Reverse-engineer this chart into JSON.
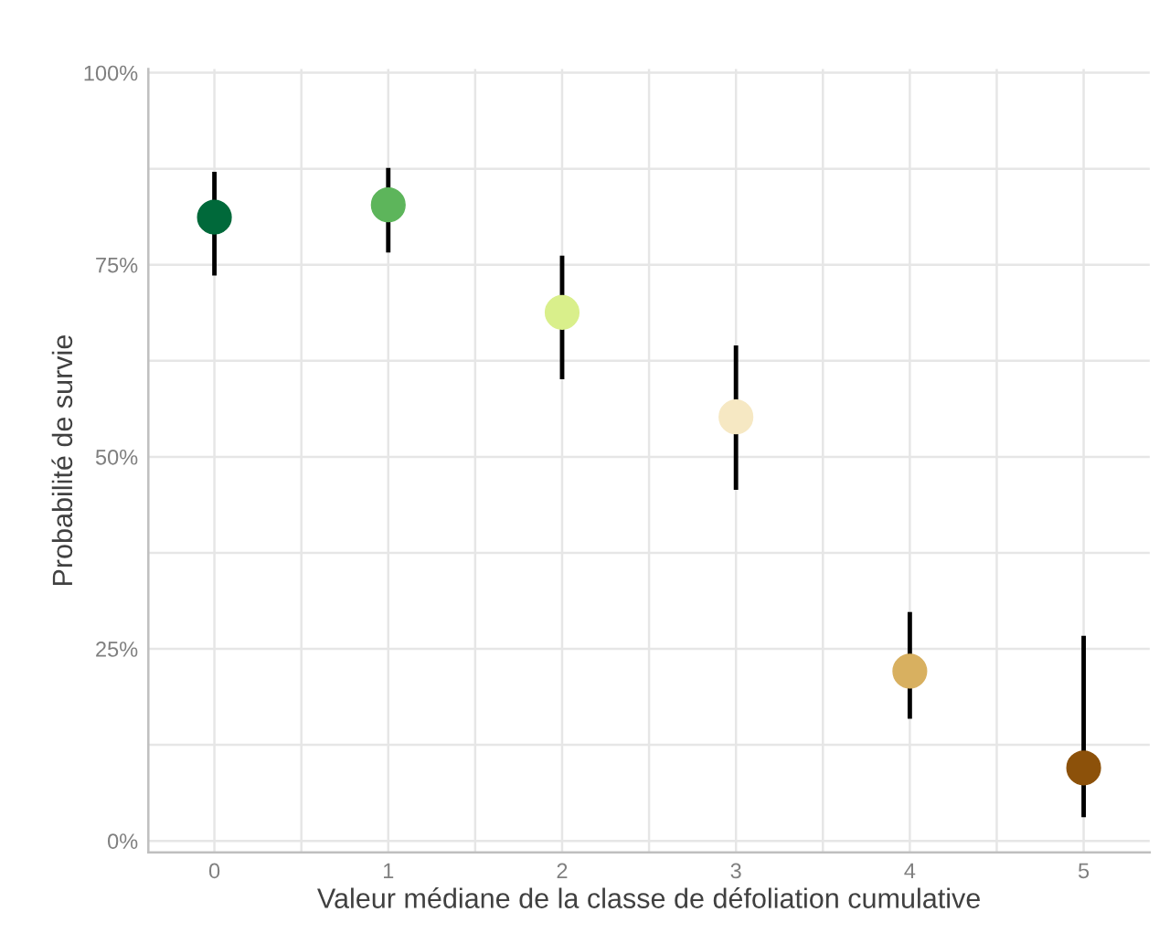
{
  "chart_data": {
    "type": "scatter",
    "xlabel": "Valeur médiane de la classe de défoliation cumulative",
    "ylabel": "Probabilité de survie",
    "x": [
      0,
      1,
      2,
      3,
      4,
      5
    ],
    "values": [
      81.2,
      82.8,
      68.8,
      55.2,
      22.1,
      9.5
    ],
    "errors": [
      [
        73.6,
        87.1
      ],
      [
        76.6,
        87.6
      ],
      [
        60.1,
        76.2
      ],
      [
        45.7,
        64.5
      ],
      [
        15.9,
        29.8
      ],
      [
        3.1,
        26.7
      ]
    ],
    "colors": [
      "#00693a",
      "#5db55b",
      "#d9ef8b",
      "#f6e8c3",
      "#d8b060",
      "#8c510a"
    ],
    "marker": "circle",
    "grid": true,
    "xlim": [
      -0.38,
      5.38
    ],
    "ylim": [
      -1.5,
      100.5
    ],
    "xticks": [
      0,
      {
        "value": 0.5,
        "label": null
      },
      1,
      {
        "value": 1.5,
        "label": null
      },
      2,
      {
        "value": 2.5,
        "label": null
      },
      3,
      {
        "value": 3.5,
        "label": null
      },
      4,
      {
        "value": 4.5,
        "label": null
      },
      5
    ],
    "yticks": [
      {
        "value": 0,
        "label": "0%"
      },
      {
        "value": 12.5,
        "label": null
      },
      {
        "value": 25,
        "label": "25%"
      },
      {
        "value": 37.5,
        "label": null
      },
      {
        "value": 50,
        "label": "50%"
      },
      {
        "value": 62.5,
        "label": null
      },
      {
        "value": 75,
        "label": "75%"
      },
      {
        "value": 87.5,
        "label": null
      },
      {
        "value": 100,
        "label": "100%"
      }
    ]
  }
}
